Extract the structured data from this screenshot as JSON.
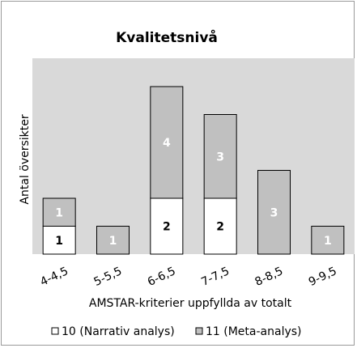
{
  "chart_data": {
    "type": "bar",
    "stacked": true,
    "title": "Kvalitetsnivå",
    "xlabel": "AMSTAR-kriterier uppfyllda av totalt",
    "ylabel": "Antal översikter",
    "categories": [
      "4-4,5",
      "5-5,5",
      "6-6,5",
      "7-7,5",
      "8-8,5",
      "9-9,5"
    ],
    "series": [
      {
        "name": "10 (Narrativ analys)",
        "color": "#ffffff",
        "values": [
          1,
          0,
          2,
          2,
          0,
          0
        ]
      },
      {
        "name": "11 (Meta-analys)",
        "color": "#c0c0c0",
        "values": [
          1,
          1,
          4,
          3,
          3,
          1
        ]
      }
    ],
    "ylim": [
      0,
      8
    ],
    "grid": false,
    "plot_background": "#d9d9d9",
    "legend_position": "bottom"
  }
}
